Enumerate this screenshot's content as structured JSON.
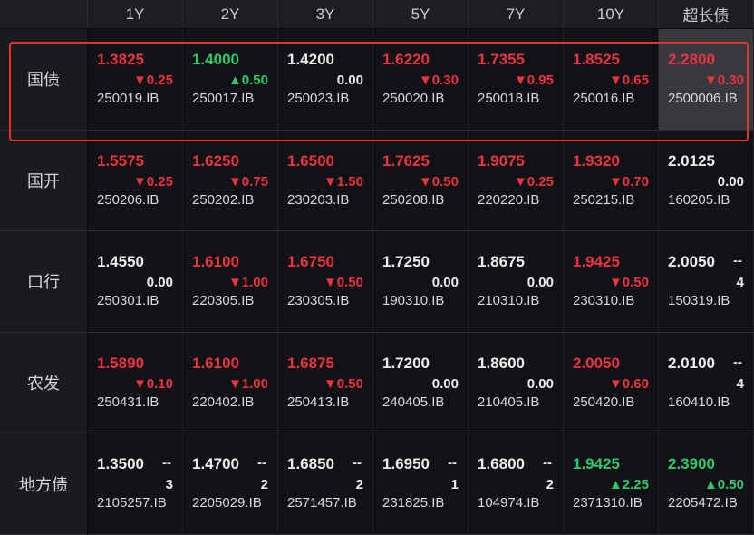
{
  "header": {
    "columns": [
      "1Y",
      "2Y",
      "3Y",
      "5Y",
      "7Y",
      "10Y",
      "超长债"
    ]
  },
  "rows": [
    {
      "label": "国债",
      "cells": [
        {
          "yield": "1.3825",
          "change": "▼0.25",
          "code": "250019.IB",
          "trend": "down"
        },
        {
          "yield": "1.4000",
          "change": "▲0.50",
          "code": "250017.IB",
          "trend": "up"
        },
        {
          "yield": "1.4200",
          "change": "0.00",
          "code": "250023.IB",
          "trend": "flat"
        },
        {
          "yield": "1.6220",
          "change": "▼0.30",
          "code": "250020.IB",
          "trend": "down"
        },
        {
          "yield": "1.7355",
          "change": "▼0.95",
          "code": "250018.IB",
          "trend": "down"
        },
        {
          "yield": "1.8525",
          "change": "▼0.65",
          "code": "250016.IB",
          "trend": "down"
        },
        {
          "yield": "2.2800",
          "change": "▼0.30",
          "code": "2500006.IB",
          "trend": "down",
          "highlighted": true
        }
      ]
    },
    {
      "label": "国开",
      "cells": [
        {
          "yield": "1.5575",
          "change": "▼0.25",
          "code": "250206.IB",
          "trend": "down"
        },
        {
          "yield": "1.6250",
          "change": "▼0.75",
          "code": "250202.IB",
          "trend": "down"
        },
        {
          "yield": "1.6500",
          "change": "▼1.50",
          "code": "230203.IB",
          "trend": "down"
        },
        {
          "yield": "1.7625",
          "change": "▼0.50",
          "code": "250208.IB",
          "trend": "down"
        },
        {
          "yield": "1.9075",
          "change": "▼0.25",
          "code": "220220.IB",
          "trend": "down"
        },
        {
          "yield": "1.9320",
          "change": "▼0.70",
          "code": "250215.IB",
          "trend": "down"
        },
        {
          "yield": "2.0125",
          "change": "0.00",
          "code": "160205.IB",
          "trend": "flat"
        }
      ]
    },
    {
      "label": "口行",
      "cells": [
        {
          "yield": "1.4550",
          "change": "0.00",
          "code": "250301.IB",
          "trend": "flat"
        },
        {
          "yield": "1.6100",
          "change": "▼1.00",
          "code": "220305.IB",
          "trend": "down"
        },
        {
          "yield": "1.6750",
          "change": "▼0.50",
          "code": "230305.IB",
          "trend": "down"
        },
        {
          "yield": "1.7250",
          "change": "0.00",
          "code": "190310.IB",
          "trend": "flat"
        },
        {
          "yield": "1.8675",
          "change": "0.00",
          "code": "210310.IB",
          "trend": "flat"
        },
        {
          "yield": "1.9425",
          "change": "▼0.50",
          "code": "230310.IB",
          "trend": "down"
        },
        {
          "yield": "2.0050",
          "side": "--",
          "change": "4",
          "code": "150319.IB",
          "trend": "flat"
        }
      ]
    },
    {
      "label": "农发",
      "cells": [
        {
          "yield": "1.5890",
          "change": "▼0.10",
          "code": "250431.IB",
          "trend": "down"
        },
        {
          "yield": "1.6100",
          "change": "▼1.00",
          "code": "220402.IB",
          "trend": "down"
        },
        {
          "yield": "1.6875",
          "change": "▼0.50",
          "code": "250413.IB",
          "trend": "down"
        },
        {
          "yield": "1.7200",
          "change": "0.00",
          "code": "240405.IB",
          "trend": "flat"
        },
        {
          "yield": "1.8600",
          "change": "0.00",
          "code": "210405.IB",
          "trend": "flat"
        },
        {
          "yield": "2.0050",
          "change": "▼0.60",
          "code": "250420.IB",
          "trend": "down"
        },
        {
          "yield": "2.0100",
          "side": "--",
          "change": "4",
          "code": "160410.IB",
          "trend": "flat"
        }
      ]
    },
    {
      "label": "地方债",
      "cells": [
        {
          "yield": "1.3500",
          "side": "--",
          "change": "3",
          "code": "2105257.IB",
          "trend": "flat"
        },
        {
          "yield": "1.4700",
          "side": "--",
          "change": "2",
          "code": "2205029.IB",
          "trend": "flat"
        },
        {
          "yield": "1.6850",
          "side": "--",
          "change": "2",
          "code": "2571457.IB",
          "trend": "flat"
        },
        {
          "yield": "1.6950",
          "side": "--",
          "change": "1",
          "code": "231825.IB",
          "trend": "flat"
        },
        {
          "yield": "1.6800",
          "side": "--",
          "change": "2",
          "code": "104974.IB",
          "trend": "flat"
        },
        {
          "yield": "1.9425",
          "change": "▲2.25",
          "code": "2371310.IB",
          "trend": "up"
        },
        {
          "yield": "2.3900",
          "change": "▲0.50",
          "code": "2205472.IB",
          "trend": "up"
        }
      ]
    }
  ]
}
